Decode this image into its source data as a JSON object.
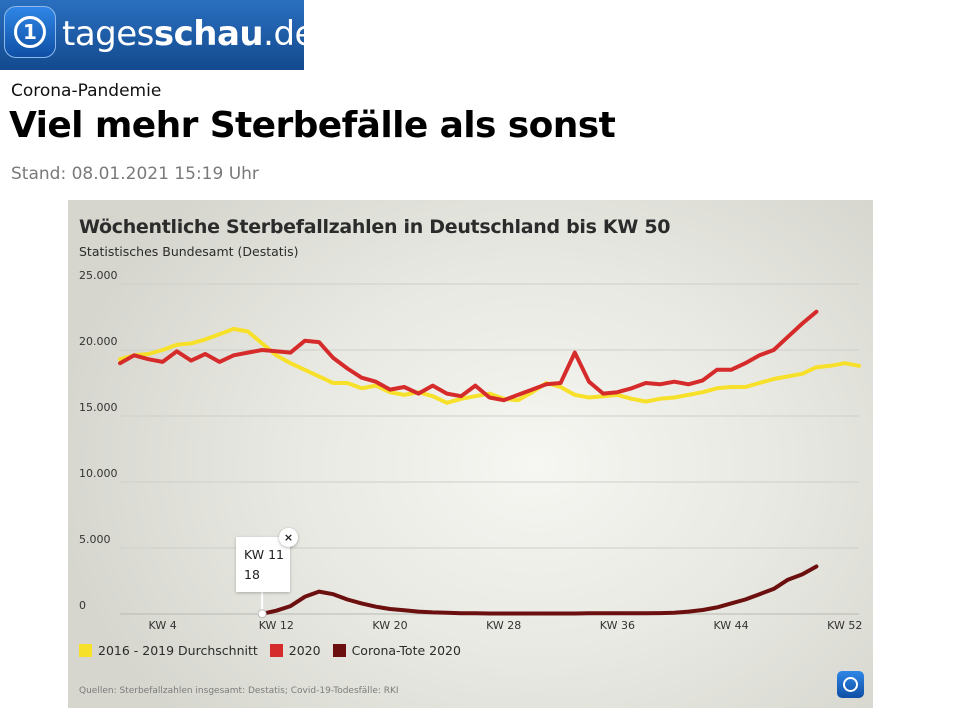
{
  "site": {
    "logo_icon_label": "1",
    "logo_text_light": "tages",
    "logo_text_bold": "schau",
    "logo_text_suffix": ".de"
  },
  "article": {
    "kicker": "Corona-Pandemie",
    "headline": "Viel mehr Sterbefälle als sonst",
    "stand": "Stand: 08.01.2021 15:19 Uhr"
  },
  "chart_data": {
    "type": "line",
    "title": "Wöchentliche Sterbefallzahlen in Deutschland bis KW 50",
    "subtitle": "Statistisches Bundesamt (Destatis)",
    "xlabel": "",
    "ylabel": "",
    "xlim": [
      1,
      53
    ],
    "ylim": [
      0,
      25000
    ],
    "y_ticks": [
      0,
      5000,
      10000,
      15000,
      20000,
      25000
    ],
    "y_tick_labels": [
      "0",
      "5.000",
      "10.000",
      "15.000",
      "20.000",
      "25.000"
    ],
    "x_ticks": [
      4,
      12,
      20,
      28,
      36,
      44,
      52
    ],
    "x_tick_labels": [
      "KW 4",
      "KW 12",
      "KW 20",
      "KW 28",
      "KW 36",
      "KW 44",
      "KW 52"
    ],
    "grid": "horizontal",
    "legend_position": "bottom-left",
    "series": [
      {
        "name": "2016 - 2019 Durchschnitt",
        "color": "#f7e02a",
        "x": [
          1,
          2,
          3,
          4,
          5,
          6,
          7,
          8,
          9,
          10,
          11,
          12,
          13,
          14,
          15,
          16,
          17,
          18,
          19,
          20,
          21,
          22,
          23,
          24,
          25,
          26,
          27,
          28,
          29,
          30,
          31,
          32,
          33,
          34,
          35,
          36,
          37,
          38,
          39,
          40,
          41,
          42,
          43,
          44,
          45,
          46,
          47,
          48,
          49,
          50,
          51,
          52,
          53
        ],
        "values": [
          19300,
          19600,
          19700,
          20000,
          20400,
          20500,
          20800,
          21200,
          21600,
          21400,
          20500,
          19600,
          19000,
          18500,
          18000,
          17500,
          17500,
          17100,
          17300,
          16800,
          16600,
          16800,
          16500,
          16000,
          16300,
          16500,
          16700,
          16300,
          16200,
          16800,
          17500,
          17200,
          16600,
          16400,
          16500,
          16600,
          16300,
          16100,
          16300,
          16400,
          16600,
          16800,
          17100,
          17200,
          17200,
          17500,
          17800,
          18000,
          18200,
          18700,
          18800,
          19000,
          18800
        ]
      },
      {
        "name": "2020",
        "color": "#d62b2b",
        "x": [
          1,
          2,
          3,
          4,
          5,
          6,
          7,
          8,
          9,
          10,
          11,
          12,
          13,
          14,
          15,
          16,
          17,
          18,
          19,
          20,
          21,
          22,
          23,
          24,
          25,
          26,
          27,
          28,
          29,
          30,
          31,
          32,
          33,
          34,
          35,
          36,
          37,
          38,
          39,
          40,
          41,
          42,
          43,
          44,
          45,
          46,
          47,
          48,
          49,
          50
        ],
        "values": [
          19000,
          19600,
          19300,
          19100,
          19900,
          19200,
          19700,
          19100,
          19600,
          19800,
          20000,
          19900,
          19800,
          20700,
          20600,
          19400,
          18600,
          17900,
          17600,
          17000,
          17200,
          16700,
          17300,
          16700,
          16500,
          17300,
          16400,
          16200,
          16600,
          17000,
          17400,
          17500,
          19800,
          17600,
          16700,
          16800,
          17100,
          17500,
          17400,
          17600,
          17400,
          17700,
          18500,
          18500,
          19000,
          19600,
          20000,
          21000,
          22000,
          22900
        ]
      },
      {
        "name": "Corona-Tote 2020",
        "color": "#6b0f0f",
        "x": [
          11,
          12,
          13,
          14,
          15,
          16,
          17,
          18,
          19,
          20,
          21,
          22,
          23,
          24,
          25,
          26,
          27,
          28,
          29,
          30,
          31,
          32,
          33,
          34,
          35,
          36,
          37,
          38,
          39,
          40,
          41,
          42,
          43,
          44,
          45,
          46,
          47,
          48,
          49,
          50
        ],
        "values": [
          18,
          250,
          600,
          1300,
          1700,
          1500,
          1100,
          800,
          550,
          380,
          280,
          180,
          120,
          90,
          60,
          50,
          40,
          40,
          40,
          40,
          40,
          40,
          40,
          50,
          50,
          50,
          50,
          60,
          70,
          100,
          180,
          300,
          500,
          800,
          1100,
          1500,
          1900,
          2600,
          3000,
          3600
        ]
      }
    ],
    "tooltip": {
      "label": "KW 11",
      "value": "18",
      "close_symbol": "×"
    },
    "source": "Quellen: Sterbefallzahlen insgesamt: Destatis; Covid-19-Todesfälle: RKI"
  }
}
